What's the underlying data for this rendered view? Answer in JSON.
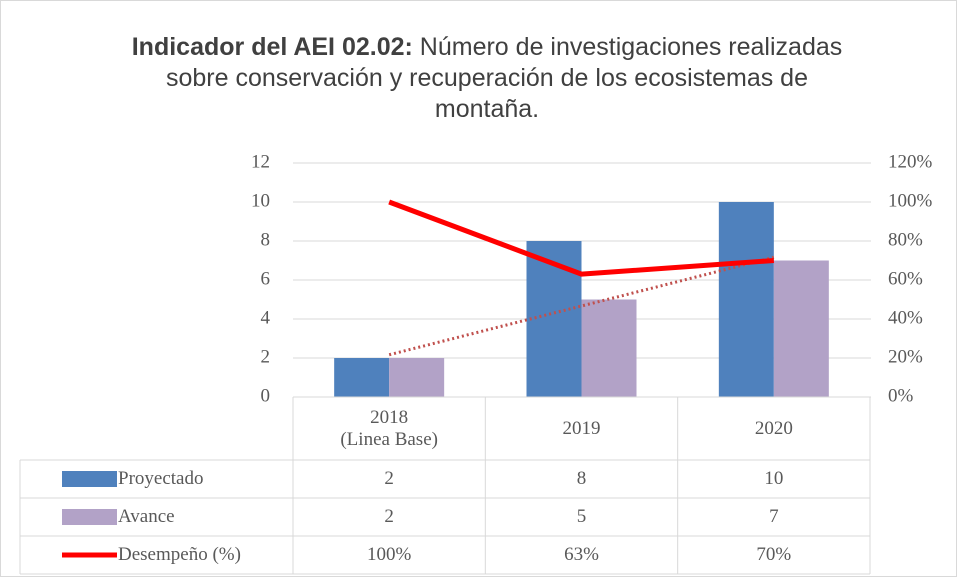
{
  "chart_data": {
    "type": "bar",
    "title_lead": "Indicador del AEI 02.02:",
    "title": "Número de investigaciones realizadas sobre conservación y recuperación de los ecosistemas de montaña.",
    "categories": [
      "2018\n(Linea Base)",
      "2019",
      "2020"
    ],
    "series": [
      {
        "name": "Proyectado",
        "color": "#4f81bd",
        "values": [
          2,
          8,
          10
        ]
      },
      {
        "name": "Avance",
        "color": "#b2a2c7",
        "values": [
          2,
          5,
          7
        ],
        "trendline": "linear",
        "trendline_color": "#c0504d"
      },
      {
        "name": "Desempeño (%)",
        "type": "line",
        "axis": "y2",
        "color": "#ff0000",
        "values": [
          100,
          63,
          70
        ],
        "value_labels": [
          "100%",
          "63%",
          "70%"
        ]
      }
    ],
    "ylim": [
      0,
      12
    ],
    "yticks": [
      0,
      2,
      4,
      6,
      8,
      10,
      12
    ],
    "y2lim": [
      0,
      120
    ],
    "y2ticks": [
      {
        "value": 0,
        "label": "0%"
      },
      {
        "value": 20,
        "label": "20%"
      },
      {
        "value": 40,
        "label": "40%"
      },
      {
        "value": 60,
        "label": "60%"
      },
      {
        "value": 80,
        "label": "80%"
      },
      {
        "value": 100,
        "label": "100%"
      },
      {
        "value": 120,
        "label": "120%"
      }
    ],
    "grid": true,
    "data_table": true
  }
}
